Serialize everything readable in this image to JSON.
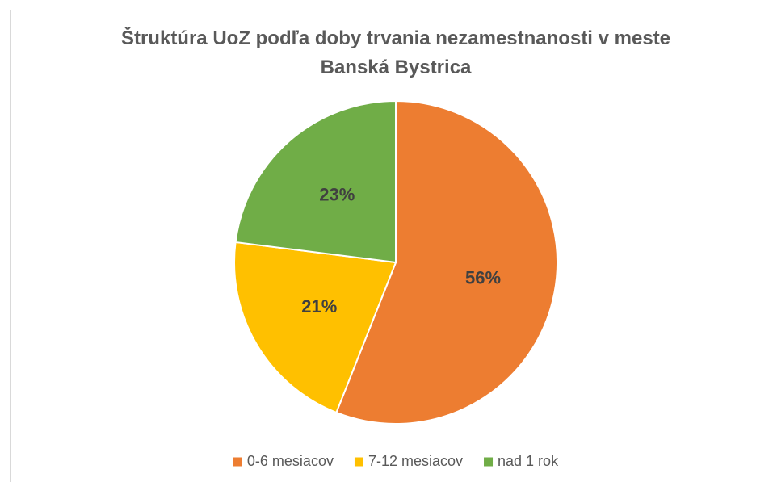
{
  "chart_data": {
    "type": "pie",
    "title": "Štruktúra UoZ podľa doby trvania nezamestnanosti v meste Banská Bystrica",
    "categories": [
      "0-6 mesiacov",
      "7-12 mesiacov",
      "nad 1 rok"
    ],
    "values": [
      56,
      21,
      23
    ],
    "value_labels": [
      "56%",
      "21%",
      "23%"
    ],
    "colors": [
      "#ED7D31",
      "#FFC000",
      "#70AD47"
    ],
    "legend": "bottom"
  }
}
